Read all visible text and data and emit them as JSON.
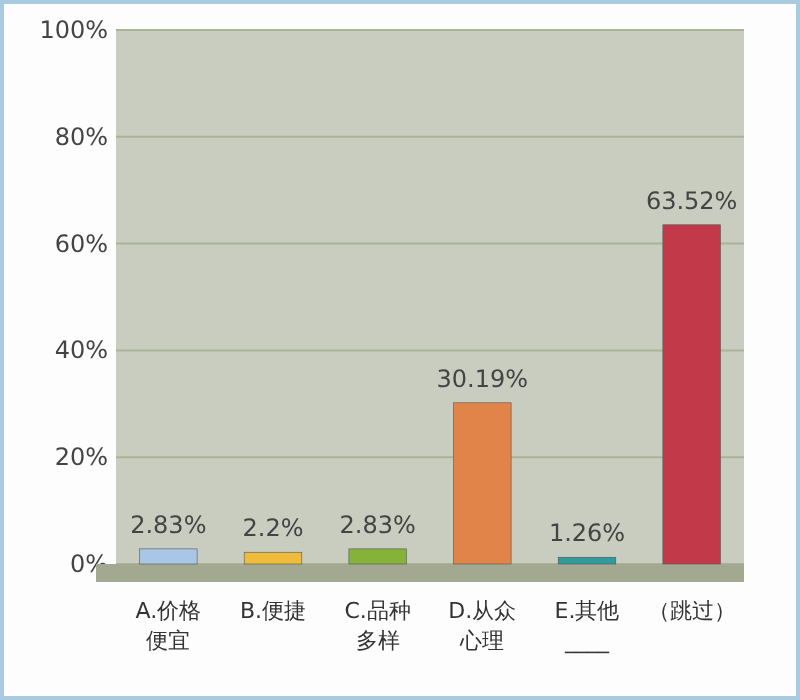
{
  "chart_data": {
    "type": "bar",
    "categories": [
      "A.价格便宜",
      "B.便捷",
      "C.品种多样",
      "D.从众心理",
      "E.其他____",
      "（跳过）"
    ],
    "values": [
      2.83,
      2.2,
      2.83,
      30.19,
      1.26,
      63.52
    ],
    "colors": [
      "#a9c6e6",
      "#eebb3a",
      "#86b23a",
      "#e0844a",
      "#2e9c9c",
      "#c23a4a"
    ],
    "value_labels": [
      "2.83%",
      "2.2%",
      "2.83%",
      "30.19%",
      "1.26%",
      "63.52%"
    ],
    "ylim": [
      0,
      100
    ],
    "yticks": [
      {
        "value": 0,
        "label": "0%"
      },
      {
        "value": 20,
        "label": "20%"
      },
      {
        "value": 40,
        "label": "40%"
      },
      {
        "value": 60,
        "label": "60%"
      },
      {
        "value": 80,
        "label": "80%"
      },
      {
        "value": 100,
        "label": "100%"
      }
    ],
    "grid": "y"
  }
}
